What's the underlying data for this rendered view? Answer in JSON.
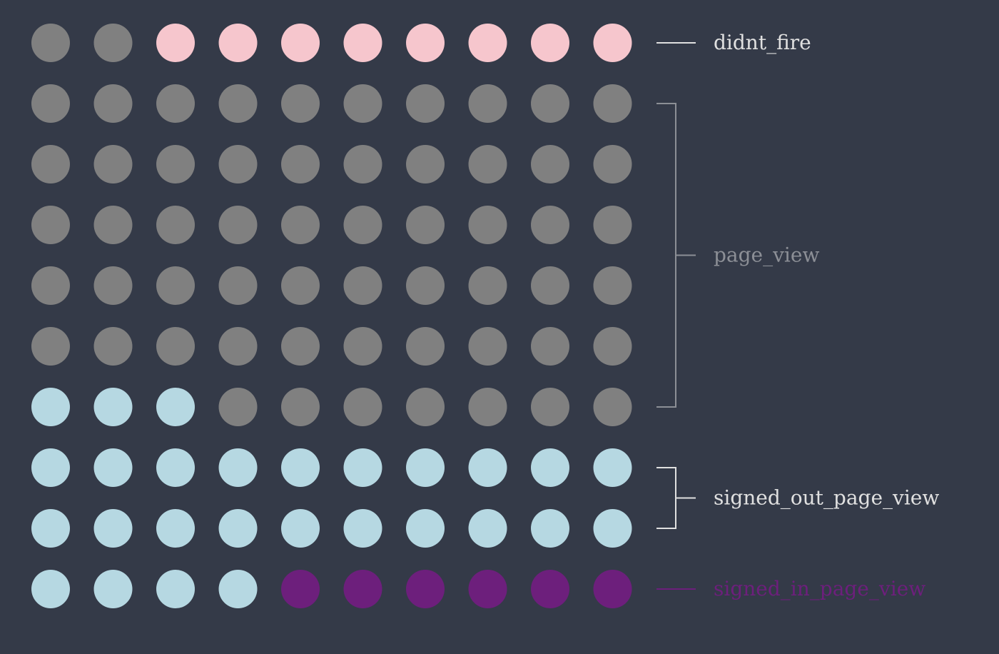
{
  "chart_data": {
    "type": "waffle",
    "title": "",
    "grid": {
      "rows": 10,
      "cols": 10
    },
    "categories": [
      {
        "name": "didnt_fire",
        "count": 8,
        "color": "#f6c6cd"
      },
      {
        "name": "page_view",
        "count": 57,
        "color": "#808080"
      },
      {
        "name": "signed_out_page_view",
        "count": 29,
        "color": "#b6d8e2"
      },
      {
        "name": "signed_in_page_view",
        "count": 6,
        "color": "#6d1f7c"
      }
    ],
    "grid_colors_by_row": [
      [
        "page_view",
        "page_view",
        "didnt_fire",
        "didnt_fire",
        "didnt_fire",
        "didnt_fire",
        "didnt_fire",
        "didnt_fire",
        "didnt_fire",
        "didnt_fire"
      ],
      [
        "page_view",
        "page_view",
        "page_view",
        "page_view",
        "page_view",
        "page_view",
        "page_view",
        "page_view",
        "page_view",
        "page_view"
      ],
      [
        "page_view",
        "page_view",
        "page_view",
        "page_view",
        "page_view",
        "page_view",
        "page_view",
        "page_view",
        "page_view",
        "page_view"
      ],
      [
        "page_view",
        "page_view",
        "page_view",
        "page_view",
        "page_view",
        "page_view",
        "page_view",
        "page_view",
        "page_view",
        "page_view"
      ],
      [
        "page_view",
        "page_view",
        "page_view",
        "page_view",
        "page_view",
        "page_view",
        "page_view",
        "page_view",
        "page_view",
        "page_view"
      ],
      [
        "page_view",
        "page_view",
        "page_view",
        "page_view",
        "page_view",
        "page_view",
        "page_view",
        "page_view",
        "page_view",
        "page_view"
      ],
      [
        "signed_out_page_view",
        "signed_out_page_view",
        "signed_out_page_view",
        "page_view",
        "page_view",
        "page_view",
        "page_view",
        "page_view",
        "page_view",
        "page_view"
      ],
      [
        "signed_out_page_view",
        "signed_out_page_view",
        "signed_out_page_view",
        "signed_out_page_view",
        "signed_out_page_view",
        "signed_out_page_view",
        "signed_out_page_view",
        "signed_out_page_view",
        "signed_out_page_view",
        "signed_out_page_view"
      ],
      [
        "signed_out_page_view",
        "signed_out_page_view",
        "signed_out_page_view",
        "signed_out_page_view",
        "signed_out_page_view",
        "signed_out_page_view",
        "signed_out_page_view",
        "signed_out_page_view",
        "signed_out_page_view",
        "signed_out_page_view"
      ],
      [
        "signed_out_page_view",
        "signed_out_page_view",
        "signed_out_page_view",
        "signed_out_page_view",
        "signed_in_page_view",
        "signed_in_page_view",
        "signed_in_page_view",
        "signed_in_page_view",
        "signed_in_page_view",
        "signed_in_page_view"
      ]
    ],
    "legend": {
      "placement": "right",
      "entries": [
        {
          "name": "didnt_fire",
          "label_color": "#e0e0e0",
          "line_color": "#e0e0e0",
          "row_start": 0,
          "row_end": 0
        },
        {
          "name": "page_view",
          "label_color": "#8c8f96",
          "line_color": "#8c8f96",
          "row_start": 1,
          "row_end": 6
        },
        {
          "name": "signed_out_page_view",
          "label_color": "#e0e0e0",
          "line_color": "#e0e0e0",
          "row_start": 7,
          "row_end": 8
        },
        {
          "name": "signed_in_page_view",
          "label_color": "#6d1f7c",
          "line_color": "#6d1f7c",
          "row_start": 9,
          "row_end": 9
        }
      ]
    },
    "background": "#343a48"
  }
}
